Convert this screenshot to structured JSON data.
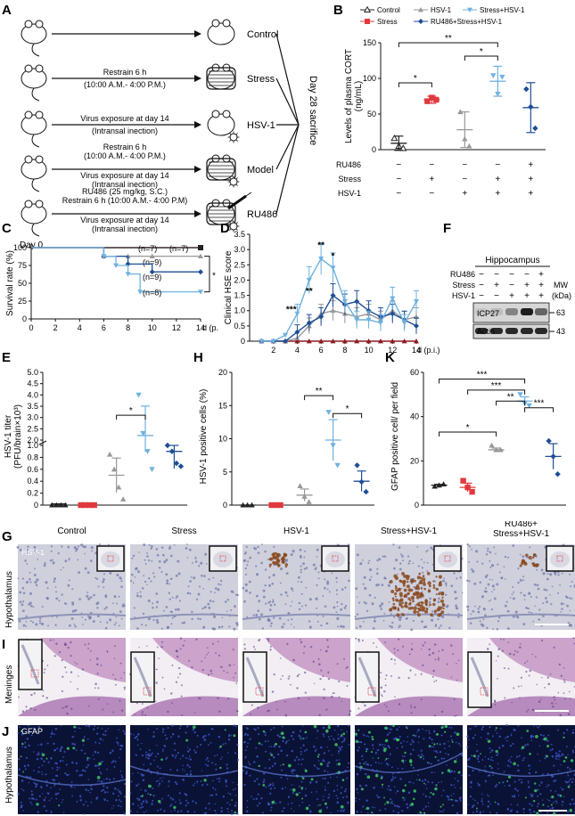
{
  "panels": {
    "A": "A",
    "B": "B",
    "C": "C",
    "D": "D",
    "E": "E",
    "F": "F",
    "G": "G",
    "H": "H",
    "I": "I",
    "J": "J",
    "K": "K"
  },
  "panelA": {
    "day0": "Day 0",
    "sacrifice": "Day 28 sacrifice",
    "rows": [
      {
        "group": "Control",
        "lines": []
      },
      {
        "group": "Stress",
        "lines": [
          "Restrain 6 h",
          "(10:00 A.M.- 4:00 P.M.)"
        ]
      },
      {
        "group": "HSV-1",
        "lines": [
          "Virus exposure at day 14",
          "(Intransal inection)"
        ]
      },
      {
        "group": "Model",
        "lines": [
          "Restrain 6 h",
          "(10:00 A.M.- 4:00 P.M.)",
          "Virus exposure at day 14",
          "(Intransal inection)"
        ]
      },
      {
        "group": "RU486",
        "lines": [
          "RU486 (25 mg/kg, S.C.)",
          "Restrain 6 h (10:00 A.M.- 4:00 P.M)",
          "Virus exposure at day 14",
          "(Intransal inection)"
        ]
      }
    ]
  },
  "legendB": [
    "Control",
    "Stress",
    "HSV-1",
    "Stress+HSV-1",
    "RU486+Stress+HSV-1"
  ],
  "colors": {
    "control": "#222222",
    "stress": "#e0393e",
    "hsv": "#999999",
    "stresshsv": "#6fb1df",
    "ru": "#1f4e96",
    "maroon": "#8c1d22"
  },
  "chart_data": [
    {
      "panel": "B",
      "type": "scatter",
      "ylabel": "Levels of plasma CORT\n(ng/mL)",
      "ylim": [
        0,
        150
      ],
      "yticks": [
        0,
        50,
        100,
        150
      ],
      "groups": [
        "Control",
        "Stress",
        "HSV-1",
        "Stress+HSV-1",
        "RU486+Stress+HSV-1"
      ],
      "means": [
        9,
        70,
        28,
        96,
        59
      ],
      "sem": [
        10,
        5,
        25,
        21,
        35
      ],
      "points": [
        [
          16,
          5,
          2
        ],
        [
          68,
          73,
          70
        ],
        [
          53,
          15,
          5
        ],
        [
          104,
          78,
          102
        ],
        [
          85,
          60,
          30
        ]
      ],
      "table": {
        "rows": [
          "RU486",
          "Stress",
          "HSV-1"
        ],
        "cells": [
          [
            "−",
            "−",
            "−",
            "−",
            "+"
          ],
          [
            "−",
            "+",
            "−",
            "+",
            "+"
          ],
          [
            "−",
            "−",
            "+",
            "+",
            "+"
          ]
        ]
      },
      "significance": [
        "*",
        "*",
        "**"
      ]
    },
    {
      "panel": "C",
      "type": "line",
      "ylabel": "Survival rate (%)",
      "xlabel": "d (p.i.)",
      "xlim": [
        0,
        14
      ],
      "ylim": [
        0,
        100
      ],
      "xticks": [
        0,
        2,
        4,
        6,
        8,
        10,
        12,
        14
      ],
      "yticks": [
        0,
        25,
        50,
        75,
        100
      ],
      "series": [
        {
          "color": "#8c1d22",
          "x": [
            0,
            14
          ],
          "y": [
            100,
            100
          ],
          "label": "(n=7)"
        },
        {
          "color": "#222222",
          "x": [
            0,
            14
          ],
          "y": [
            100,
            100
          ],
          "label": "(n=7)"
        },
        {
          "color": "#999999",
          "x": [
            6,
            8,
            10,
            14
          ],
          "y": [
            88,
            88,
            88,
            88
          ],
          "label": "(n=9)"
        },
        {
          "color": "#1f4e96",
          "x": [
            6,
            8,
            10,
            14
          ],
          "y": [
            88,
            77,
            66,
            66
          ],
          "label": "(n=9)"
        },
        {
          "color": "#6fb1df",
          "x": [
            6,
            7,
            8,
            9,
            14
          ],
          "y": [
            88,
            75,
            63,
            38,
            38
          ],
          "label": "(n=8)"
        }
      ],
      "significance": "*"
    },
    {
      "panel": "D",
      "type": "line",
      "ylabel": "Clinical HSE score",
      "xlabel": "d (p.i.)",
      "xlim": [
        0,
        14
      ],
      "ylim": [
        0,
        3.5
      ],
      "xticks": [
        2,
        4,
        6,
        8,
        10,
        12,
        14
      ],
      "yticks": [
        0,
        0.5,
        1.0,
        1.5,
        2.0,
        2.5,
        3.0,
        3.5
      ],
      "yticklabels": [
        "0",
        "0.5",
        "1.0",
        "1.5",
        "2.0",
        "2.5",
        "3.0",
        "3.5"
      ],
      "x": [
        1,
        2,
        3,
        4,
        5,
        6,
        7,
        8,
        9,
        10,
        11,
        12,
        13,
        14
      ],
      "series": [
        {
          "color": "#8c1d22",
          "y": [
            0,
            0,
            0,
            0,
            0,
            0,
            0,
            0,
            0,
            0,
            0,
            0,
            0,
            0
          ]
        },
        {
          "color": "#999999",
          "y": [
            0,
            0,
            0,
            0.1,
            0.5,
            0.9,
            1.0,
            0.9,
            0.8,
            0.9,
            0.7,
            1.0,
            0.7,
            0.8
          ]
        },
        {
          "color": "#1f4e96",
          "y": [
            0,
            0,
            0,
            0.3,
            0.6,
            0.8,
            1.5,
            1.2,
            1.3,
            1.0,
            0.8,
            0.9,
            0.7,
            0.5
          ]
        },
        {
          "color": "#6fb1df",
          "y": [
            0,
            0,
            0.2,
            0.9,
            2.0,
            2.7,
            2.4,
            1.3,
            0.7,
            0.7,
            0.6,
            1.4,
            0.6,
            1.3
          ]
        }
      ],
      "significance": [
        "***",
        "**",
        "**",
        "*"
      ]
    },
    {
      "panel": "E",
      "type": "scatter",
      "ylabel": "HSV-1 titer\n(PFU/brain×10³)",
      "ylim": [
        0,
        5
      ],
      "broken_axis": true,
      "yticks": [
        "0",
        "0.2",
        "0.4",
        "0.6",
        "0.8",
        "1.0",
        "2.0",
        "2.5",
        "3.0",
        "3.5",
        "4.0",
        "4.5",
        "5.0"
      ],
      "groups": [
        "Control",
        "Stress",
        "HSV-1",
        "Stress+HSV-1",
        "RU486+Stress+HSV-1"
      ],
      "means": [
        0.02,
        0.02,
        0.5,
        2.2,
        0.9
      ],
      "points": [
        [
          0,
          0,
          0,
          0
        ],
        [
          0,
          0,
          0,
          0
        ],
        [
          0.85,
          0.6,
          0.3,
          0.1
        ],
        [
          4.0,
          2.3,
          0.9,
          0.6
        ],
        [
          1.4,
          0.9,
          0.7,
          0.65
        ]
      ],
      "significance": [
        "*"
      ]
    },
    {
      "panel": "H",
      "type": "scatter",
      "ylabel": "HSV-1 positive cells (%)",
      "ylim": [
        0,
        20
      ],
      "yticks": [
        0,
        5,
        10,
        15,
        20
      ],
      "groups": [
        "Control",
        "Stress",
        "HSV-1",
        "Stress+HSV-1",
        "RU486+Stress+HSV-1"
      ],
      "means": [
        0,
        0,
        1.5,
        9.8,
        3.6
      ],
      "points": [
        [
          0,
          0,
          0
        ],
        [
          0,
          0,
          0
        ],
        [
          2.9,
          1.3,
          0.5
        ],
        [
          14,
          9,
          6
        ],
        [
          6,
          3.5,
          2
        ]
      ],
      "significance": [
        "**",
        "*"
      ]
    },
    {
      "panel": "K",
      "type": "scatter",
      "ylabel": "GFAP positive cell/ per field",
      "ylim": [
        0,
        60
      ],
      "yticks": [
        0,
        20,
        40,
        60
      ],
      "groups": [
        "Control",
        "Stress",
        "HSV-1",
        "Stress+HSV-1",
        "RU486+Stress+HSV-1"
      ],
      "means": [
        9,
        8,
        25,
        47,
        22
      ],
      "points": [
        [
          8.5,
          9,
          9.5
        ],
        [
          11,
          8,
          6
        ],
        [
          27,
          25,
          25
        ],
        [
          50,
          46,
          45
        ],
        [
          29,
          22,
          14
        ]
      ],
      "significance": [
        "*",
        "***",
        "***",
        "**",
        "***"
      ]
    }
  ],
  "panelF": {
    "title": "Hippocampus",
    "rows": [
      "RU486",
      "Stress",
      "HSV-1"
    ],
    "cells": [
      [
        "−",
        "−",
        "−",
        "−",
        "+"
      ],
      [
        "−",
        "+",
        "−",
        "+",
        "+"
      ],
      [
        "−",
        "−",
        "+",
        "+",
        "+"
      ]
    ],
    "mw": "MW",
    "kda": "(kDa)",
    "bands": [
      {
        "label": "ICP27",
        "mw": "63"
      },
      {
        "label": "Actin",
        "mw": "43"
      }
    ]
  },
  "panelG": {
    "cols": [
      "Control",
      "Stress",
      "HSV-1",
      "Stress+HSV-1",
      "RU486+\nStress+HSV-1"
    ],
    "label": "HSV-1",
    "row": "Hypothalamus"
  },
  "panelI": {
    "row": "Meninges"
  },
  "panelJ": {
    "label": "GFAP",
    "row": "Hypothalamus"
  }
}
